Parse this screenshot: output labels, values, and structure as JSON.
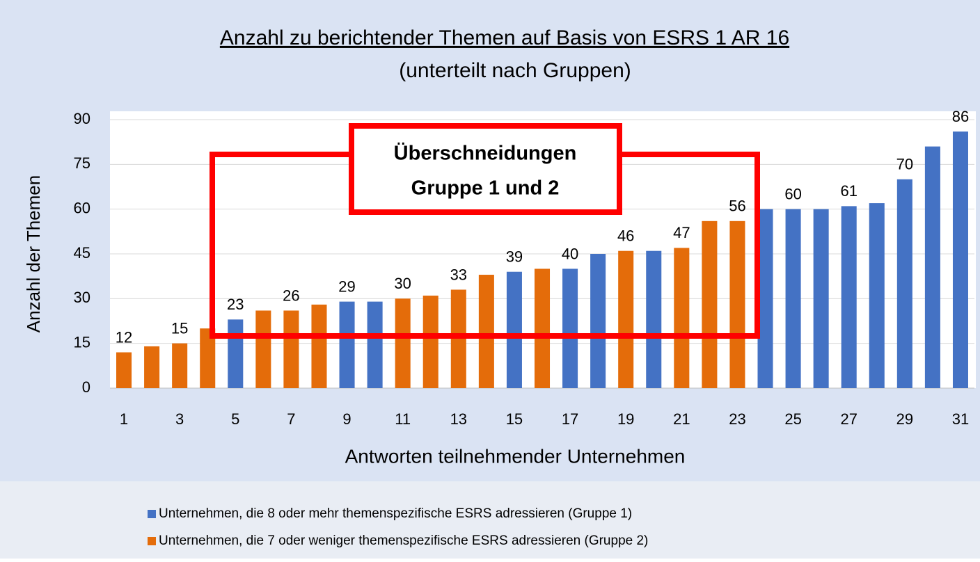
{
  "chart_data": {
    "type": "bar",
    "title": "Anzahl zu berichtender Themen auf Basis von ESRS 1 AR 16",
    "subtitle": "(unterteilt nach Gruppen)",
    "x_label": "Antworten teilnehmender Unternehmen",
    "y_label": "Anzahl der Themen",
    "annotation": [
      "Überschneidungen",
      "Gruppe 1 und 2"
    ],
    "categories": [
      1,
      null,
      3,
      null,
      5,
      null,
      7,
      null,
      9,
      null,
      11,
      null,
      13,
      null,
      15,
      null,
      17,
      null,
      19,
      null,
      21,
      null,
      23,
      null,
      25,
      null,
      27,
      null,
      29,
      null,
      31
    ],
    "series": [
      {
        "name": "Unternehmen, die 8 oder mehr themenspezifische ESRS adressieren (Gruppe 1)",
        "color": "#4472c4",
        "values": [
          null,
          null,
          null,
          null,
          23,
          null,
          null,
          null,
          29,
          29,
          null,
          null,
          null,
          null,
          39,
          null,
          40,
          45,
          null,
          46,
          null,
          null,
          null,
          60,
          60,
          60,
          61,
          62,
          70,
          81,
          86
        ],
        "value_labels": [
          null,
          null,
          null,
          null,
          "23",
          null,
          null,
          null,
          "29",
          null,
          null,
          null,
          null,
          null,
          "39",
          null,
          "40",
          null,
          null,
          null,
          null,
          null,
          null,
          null,
          "60",
          null,
          "61",
          null,
          "70",
          null,
          "86"
        ]
      },
      {
        "name": "Unternehmen, die 7 oder weniger themenspezifische ESRS adressieren (Gruppe 2)",
        "color": "#e46c0a",
        "values": [
          12,
          14,
          15,
          20,
          null,
          26,
          26,
          28,
          null,
          null,
          30,
          31,
          33,
          38,
          null,
          40,
          null,
          null,
          46,
          null,
          47,
          56,
          56,
          null,
          null,
          null,
          null,
          null,
          null,
          null,
          null
        ],
        "value_labels": [
          "12",
          null,
          "15",
          null,
          null,
          null,
          "26",
          null,
          null,
          null,
          "30",
          null,
          "33",
          null,
          null,
          null,
          null,
          null,
          "46",
          null,
          "47",
          null,
          "56",
          null,
          null,
          null,
          null,
          null,
          null,
          null,
          null
        ]
      }
    ],
    "ylim": [
      0,
      90
    ],
    "yticks": [
      0,
      15,
      30,
      45,
      60,
      75,
      90
    ],
    "grid": true,
    "legend": "bottom"
  }
}
